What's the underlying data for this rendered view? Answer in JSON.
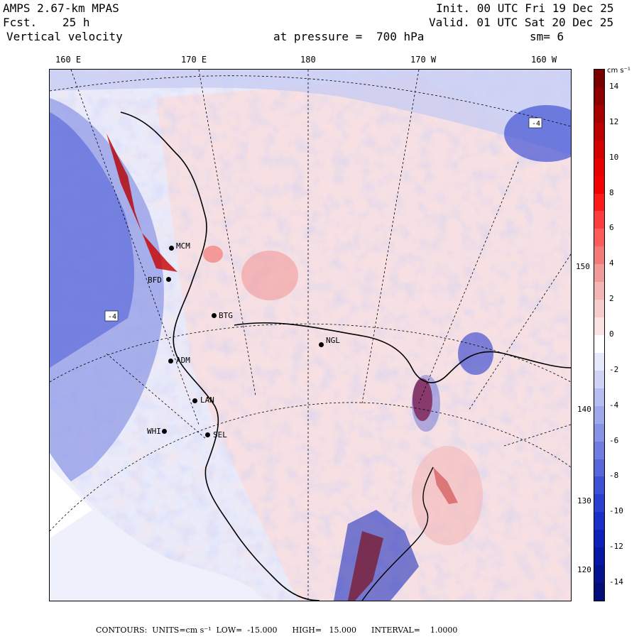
{
  "header": {
    "model": "AMPS 2.67-km MPAS",
    "fcst_label": "Fcst.",
    "fcst_value": "25 h",
    "field": "Vertical velocity",
    "init": "Init. 00 UTC Fri 19 Dec 25",
    "valid": "Valid. 01 UTC Sat 20 Dec 25",
    "pressure_label": "at pressure =",
    "pressure_value": "700 hPa",
    "smoothing": "sm= 6"
  },
  "longitude_labels": [
    "160 E",
    "170 E",
    "180",
    "170 W",
    "160 W"
  ],
  "latitude_labels": [
    "150 W",
    "140 W",
    "130 W",
    "120 W"
  ],
  "stations": [
    {
      "id": "MCM",
      "label": "MCM"
    },
    {
      "id": "BFD",
      "label": "BFD"
    },
    {
      "id": "BTG",
      "label": "BTG"
    },
    {
      "id": "NGL",
      "label": "NGL"
    },
    {
      "id": "ADM",
      "label": "ADM"
    },
    {
      "id": "LAN",
      "label": "LAN"
    },
    {
      "id": "WHI",
      "label": "WHI"
    },
    {
      "id": "SEL",
      "label": "SEL"
    }
  ],
  "colorbar": {
    "units": "cm s⁻¹",
    "ticks": [
      "14",
      "12",
      "10",
      "8",
      "6",
      "4",
      "2",
      "0",
      "-2",
      "-4",
      "-6",
      "-8",
      "-10",
      "-12",
      "-14"
    ],
    "min": -15,
    "max": 15,
    "interval": 1,
    "colors_top_to_bottom": [
      "#7a0000",
      "#8e0000",
      "#a60000",
      "#be0000",
      "#d40000",
      "#e60000",
      "#f30000",
      "#ff1a1a",
      "#ff3d3d",
      "#ff5c5c",
      "#f47a7a",
      "#f29a9a",
      "#f4b5b5",
      "#f6cccc",
      "#f9e3e3",
      "#ffffff",
      "#e6e8fb",
      "#cfd3f6",
      "#b6bdf1",
      "#9ea8ec",
      "#8793e6",
      "#6f7de0",
      "#5767da",
      "#3e51d4",
      "#2a3fcf",
      "#1a2ec8",
      "#0e20ba",
      "#0818a6",
      "#061390",
      "#040e7a"
    ]
  },
  "footer": {
    "contours_label": "CONTOURS:",
    "units": "UNITS=cm s⁻¹",
    "low": "LOW=  -15.000",
    "high": "HIGH=   15.000",
    "interval": "INTERVAL=    1.0000"
  }
}
